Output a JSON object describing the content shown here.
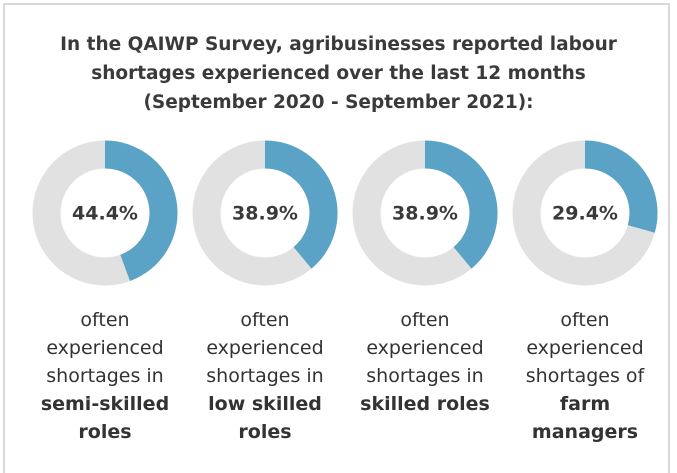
{
  "title": "In the QAIWP Survey, agribusinesses reported labour shortages experienced over the last 12 months (September 2020 - September 2021):",
  "chart_data": [
    {
      "type": "donut",
      "values": [
        44.4
      ],
      "value_labels": [
        "44.4%"
      ],
      "color": "#5ba3c6",
      "track_color": "#e1e1e1",
      "caption": "often experienced shortages in",
      "caption_bold": "semi-skilled roles"
    },
    {
      "type": "donut",
      "values": [
        38.9
      ],
      "value_labels": [
        "38.9%"
      ],
      "color": "#5ba3c6",
      "track_color": "#e1e1e1",
      "caption": "often experienced shortages in",
      "caption_bold": "low skilled roles"
    },
    {
      "type": "donut",
      "values": [
        38.9
      ],
      "value_labels": [
        "38.9%"
      ],
      "color": "#5ba3c6",
      "track_color": "#e1e1e1",
      "caption": "often experienced shortages in",
      "caption_bold": "skilled roles"
    },
    {
      "type": "donut",
      "values": [
        29.4
      ],
      "value_labels": [
        "29.4%"
      ],
      "color": "#5ba3c6",
      "track_color": "#e1e1e1",
      "caption": "often experienced shortages of",
      "caption_bold": "farm managers"
    }
  ]
}
